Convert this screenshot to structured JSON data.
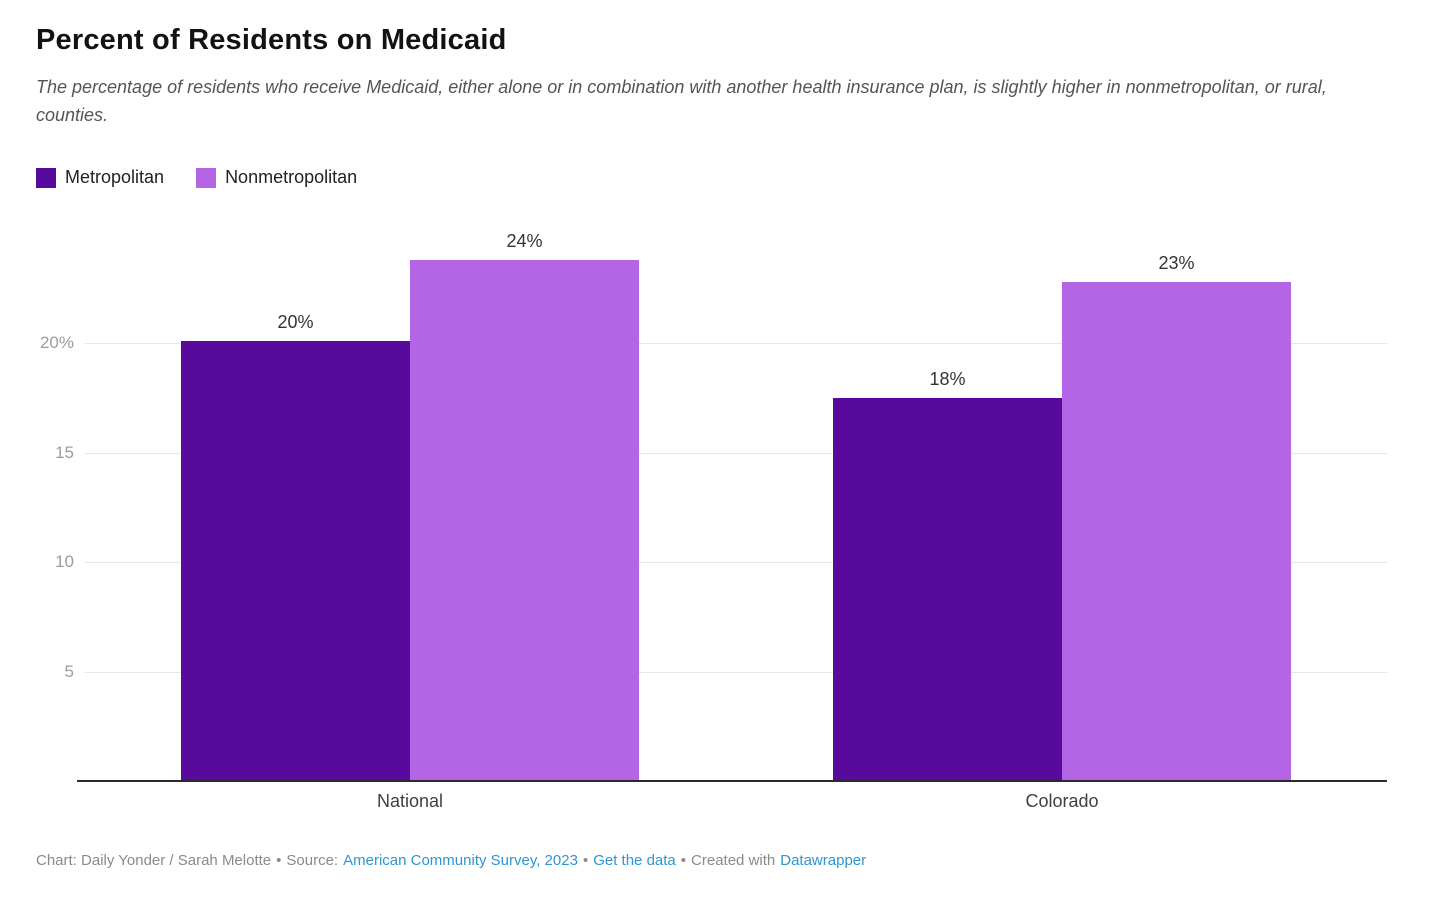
{
  "header": {
    "title": "Percent of Residents on Medicaid",
    "subtitle": "The percentage of residents who receive Medicaid, either alone or in combination with another health insurance plan, is slightly higher in nonmetropolitan, or rural, counties."
  },
  "legend": {
    "items": [
      {
        "label": "Metropolitan",
        "color": "#570a9b"
      },
      {
        "label": "Nonmetropolitan",
        "color": "#b365e6"
      }
    ]
  },
  "chart_data": {
    "type": "bar",
    "title": "Percent of Residents on Medicaid",
    "categories": [
      "National",
      "Colorado"
    ],
    "series": [
      {
        "name": "Metropolitan",
        "color": "#570a9b",
        "values": [
          20,
          18
        ],
        "labels": [
          "20%",
          "18%"
        ],
        "plotted": [
          20.1,
          17.5
        ]
      },
      {
        "name": "Nonmetropolitan",
        "color": "#b365e6",
        "values": [
          24,
          23
        ],
        "labels": [
          "24%",
          "23%"
        ],
        "plotted": [
          23.8,
          22.8
        ]
      }
    ],
    "ylabel": "",
    "xlabel": "",
    "ylim": [
      0,
      25.2
    ],
    "yticks": [
      5,
      10,
      15,
      20
    ],
    "ytick_labels": [
      "5",
      "10",
      "15",
      "20%"
    ],
    "unit": "percent",
    "grid": "horizontal",
    "legend_position": "top-left",
    "colors": {
      "grid": "#e6e6e6",
      "axis": "#2b2b2b",
      "tick_text": "#9c9c9c",
      "data_label": "#333333"
    }
  },
  "footer": {
    "credit": "Chart: Daily Yonder / Sarah Melotte",
    "separator": "•",
    "source_prefix": "Source:",
    "source_link": "American Community Survey, 2023",
    "get_data_link": "Get the data",
    "created_with": "Created with",
    "datawrapper_link": "Datawrapper"
  }
}
